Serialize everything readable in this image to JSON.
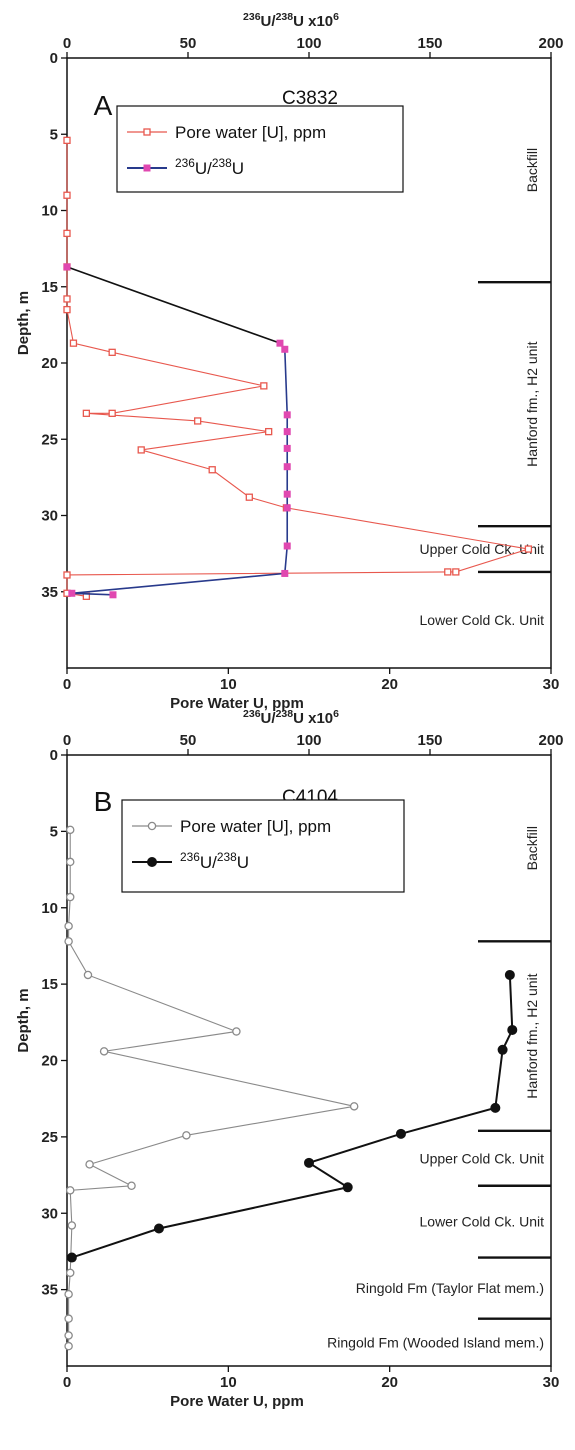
{
  "chart_data": [
    {
      "type": "line",
      "panel_letter": "A",
      "title": "C3832",
      "top_axis_label": "236U/238U x106",
      "top_xlim": [
        0,
        200
      ],
      "top_ticks": [
        0,
        50,
        100,
        150,
        200
      ],
      "bottom_axis_label": "Pore Water U, ppm",
      "bottom_xlim": [
        0,
        30
      ],
      "bottom_ticks": [
        0,
        10,
        20,
        30
      ],
      "ylabel": "Depth, m",
      "ylim": [
        0,
        40
      ],
      "y_ticks": [
        0,
        5,
        10,
        15,
        20,
        25,
        30,
        35
      ],
      "legend": [
        {
          "key": "pore",
          "text": "Pore water [U], ppm"
        },
        {
          "key": "ratio",
          "text": "236U/238U"
        }
      ],
      "units": [
        {
          "name": "Backfill",
          "depth_top": 0,
          "depth_bottom": 14.7,
          "vertical": true
        },
        {
          "name": "Hanford fm., H2 unit",
          "depth_top": 14.7,
          "depth_bottom": 30.7,
          "vertical": true
        },
        {
          "name": "Upper Cold Ck. Unit",
          "depth_top": 30.7,
          "depth_bottom": 33.7,
          "vertical": false
        },
        {
          "name": "Lower Cold Ck. Unit",
          "depth_top": 33.7,
          "depth_bottom": 40,
          "vertical": false
        }
      ],
      "unit_boundaries": [
        14.7,
        30.7,
        33.7
      ],
      "series": [
        {
          "key": "pore",
          "name": "Pore water [U], ppm",
          "axis": "bottom",
          "color": "#e8584e",
          "marker": "open-square",
          "points": [
            [
              0.0,
              5.4
            ],
            [
              0.0,
              9.0
            ],
            [
              0.0,
              11.5
            ],
            [
              0.0,
              13.7
            ],
            [
              0.0,
              15.8
            ],
            [
              0.0,
              16.5
            ],
            [
              0.4,
              18.7
            ],
            [
              2.8,
              19.3
            ],
            [
              12.2,
              21.5
            ],
            [
              2.8,
              23.3
            ],
            [
              1.2,
              23.3
            ],
            [
              8.1,
              23.8
            ],
            [
              12.5,
              24.5
            ],
            [
              4.6,
              25.7
            ],
            [
              9.0,
              27.0
            ],
            [
              11.3,
              28.8
            ],
            [
              13.6,
              29.5
            ],
            [
              28.6,
              32.2
            ],
            [
              24.1,
              33.7
            ],
            [
              23.6,
              33.7
            ],
            [
              0.0,
              33.9
            ],
            [
              0.0,
              35.1
            ],
            [
              1.2,
              35.3
            ]
          ]
        },
        {
          "key": "ratio",
          "name": "236U/238U",
          "axis": "top",
          "color": "#e048b0",
          "line_color": "#283a8c",
          "marker": "filled-square",
          "points": [
            [
              0,
              13.7
            ],
            [
              88,
              18.7
            ],
            [
              90,
              19.1
            ],
            [
              91,
              23.4
            ],
            [
              91,
              24.5
            ],
            [
              91,
              25.6
            ],
            [
              91,
              26.8
            ],
            [
              91,
              28.6
            ],
            [
              91,
              29.5
            ],
            [
              91,
              32.0
            ],
            [
              90,
              33.8
            ],
            [
              2,
              35.1
            ],
            [
              19,
              35.2
            ]
          ]
        }
      ]
    },
    {
      "type": "line",
      "panel_letter": "B",
      "title": "C4104",
      "top_axis_label": "236U/238U x106",
      "top_xlim": [
        0,
        200
      ],
      "top_ticks": [
        0,
        50,
        100,
        150,
        200
      ],
      "bottom_axis_label": "Pore Water U, ppm",
      "bottom_xlim": [
        0,
        30
      ],
      "bottom_ticks": [
        0,
        10,
        20,
        30
      ],
      "ylabel": "Depth, m",
      "ylim": [
        0,
        40
      ],
      "y_ticks": [
        0,
        5,
        10,
        15,
        20,
        25,
        30,
        35
      ],
      "legend": [
        {
          "key": "pore",
          "text": "Pore water [U], ppm"
        },
        {
          "key": "ratio",
          "text": "236U/238U"
        }
      ],
      "units": [
        {
          "name": "Backfill",
          "depth_top": 0,
          "depth_bottom": 12.2,
          "vertical": true
        },
        {
          "name": "Hanford fm., H2 unit",
          "depth_top": 12.2,
          "depth_bottom": 24.6,
          "vertical": true
        },
        {
          "name": "Upper Cold Ck. Unit",
          "depth_top": 24.6,
          "depth_bottom": 28.2,
          "vertical": false
        },
        {
          "name": "Lower Cold Ck. Unit",
          "depth_top": 28.2,
          "depth_bottom": 32.9,
          "vertical": false
        },
        {
          "name": "Ringold Fm (Taylor Flat mem.)",
          "depth_top": 32.9,
          "depth_bottom": 36.9,
          "vertical": false
        },
        {
          "name": "Ringold Fm (Wooded Island mem.)",
          "depth_top": 36.9,
          "depth_bottom": 40,
          "vertical": false
        }
      ],
      "unit_boundaries": [
        12.2,
        24.6,
        28.2,
        32.9,
        36.9
      ],
      "series": [
        {
          "key": "pore",
          "name": "Pore water [U], ppm",
          "axis": "bottom",
          "color": "#8a8a8a",
          "marker": "open-circle",
          "points": [
            [
              0.2,
              4.9
            ],
            [
              0.2,
              7.0
            ],
            [
              0.2,
              9.3
            ],
            [
              0.1,
              11.2
            ],
            [
              0.1,
              12.2
            ],
            [
              1.3,
              14.4
            ],
            [
              10.5,
              18.1
            ],
            [
              2.3,
              19.4
            ],
            [
              17.8,
              23.0
            ],
            [
              7.4,
              24.9
            ],
            [
              1.4,
              26.8
            ],
            [
              4.0,
              28.2
            ],
            [
              0.2,
              28.5
            ],
            [
              0.3,
              30.8
            ],
            [
              0.2,
              33.9
            ],
            [
              0.1,
              35.3
            ],
            [
              0.1,
              36.9
            ],
            [
              0.1,
              38.0
            ],
            [
              0.1,
              38.7
            ]
          ]
        },
        {
          "key": "ratio",
          "name": "236U/238U",
          "axis": "top",
          "color": "#111111",
          "marker": "filled-circle",
          "points": [
            [
              183,
              14.4
            ],
            [
              184,
              18.0
            ],
            [
              180,
              19.3
            ],
            [
              177,
              23.1
            ],
            [
              138,
              24.8
            ],
            [
              100,
              26.7
            ],
            [
              116,
              28.3
            ],
            [
              38,
              31.0
            ],
            [
              2,
              32.9
            ]
          ]
        }
      ]
    }
  ]
}
